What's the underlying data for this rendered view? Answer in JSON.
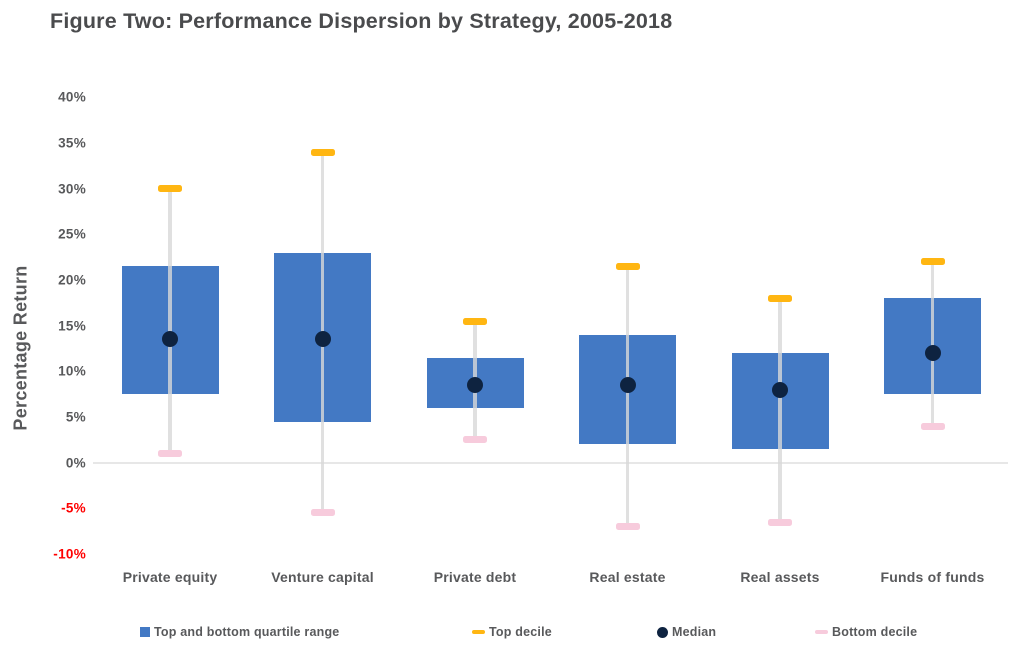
{
  "title": "Figure Two: Performance Dispersion by Strategy, 2005-2018",
  "y_axis": {
    "label": "Percentage Return",
    "ticks": [
      {
        "label": "40%",
        "value": 40
      },
      {
        "label": "35%",
        "value": 35
      },
      {
        "label": "30%",
        "value": 30
      },
      {
        "label": "25%",
        "value": 25
      },
      {
        "label": "20%",
        "value": 20
      },
      {
        "label": "15%",
        "value": 15
      },
      {
        "label": "10%",
        "value": 10
      },
      {
        "label": "5%",
        "value": 5
      },
      {
        "label": "0%",
        "value": 0
      },
      {
        "label": "-5%",
        "value": -5
      },
      {
        "label": "-10%",
        "value": -10
      }
    ]
  },
  "legend": [
    {
      "label": "Top and bottom quartile range",
      "marker": "square",
      "color_key": "box"
    },
    {
      "label": "Top decile",
      "marker": "dash",
      "color_key": "top_decile"
    },
    {
      "label": "Median",
      "marker": "dot",
      "color_key": "median"
    },
    {
      "label": "Bottom decile",
      "marker": "dash",
      "color_key": "bottom_decile"
    }
  ],
  "colors": {
    "box": "#4379C4",
    "top_decile": "#FFB612",
    "median": "#0E2340",
    "bottom_decile": "#F7CBDC",
    "whisker": "rgba(216,216,216,0.8)",
    "axis_line": "#E7E7E7",
    "text": "#58595B",
    "title_text": "#4A4B4D",
    "negative_tick_text": "#FF0000"
  },
  "chart_data": {
    "type": "boxplot",
    "title": "Figure Two: Performance Dispersion by Strategy, 2005-2018",
    "xlabel": "",
    "ylabel": "Percentage Return",
    "ylim": [
      -10,
      40
    ],
    "y_tick_step": 5,
    "grid": false,
    "legend_position": "bottom",
    "units": "percent",
    "categories": [
      "Private equity",
      "Venture capital",
      "Private debt",
      "Real estate",
      "Real assets",
      "Funds of funds"
    ],
    "series": [
      {
        "name": "Top decile",
        "values": [
          30,
          34,
          15.5,
          21.5,
          18,
          22
        ]
      },
      {
        "name": "Top quartile",
        "values": [
          21.5,
          23,
          11.5,
          14,
          12,
          18
        ]
      },
      {
        "name": "Median",
        "values": [
          13.5,
          13.5,
          8.5,
          8.5,
          8,
          12
        ]
      },
      {
        "name": "Bottom quartile",
        "values": [
          7.5,
          4.5,
          6,
          2,
          1.5,
          7.5
        ]
      },
      {
        "name": "Bottom decile",
        "values": [
          1,
          -5.5,
          2.5,
          -7,
          -6.5,
          4
        ]
      }
    ]
  }
}
